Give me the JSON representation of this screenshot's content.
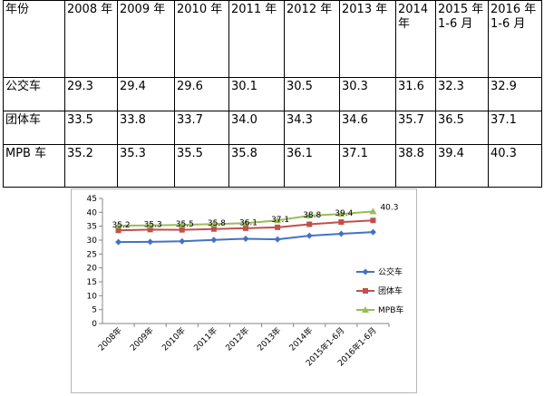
{
  "table": {
    "header": [
      "年份",
      "2008 年",
      "2009 年",
      "2010 年",
      "2011 年",
      "2012 年",
      "2013 年",
      "2014 年",
      "2015 年 1-6 月",
      "2016 年 1-6 月"
    ],
    "rows": [
      [
        "公交车",
        "29.3",
        "29.4",
        "29.6",
        "30.1",
        "30.5",
        "30.3",
        "31.6",
        "32.3",
        "32.9"
      ],
      [
        "团体车",
        "33.5",
        "33.8",
        "33.7",
        "34.0",
        "34.3",
        "34.6",
        "35.7",
        "36.5",
        "37.1"
      ],
      [
        "MPB 车",
        "35.2",
        "35.3",
        "35.5",
        "35.8",
        "36.1",
        "37.1",
        "38.8",
        "39.4",
        "40.3"
      ]
    ]
  },
  "chart_data": {
    "type": "line",
    "categories": [
      "2008年",
      "2009年",
      "2010年",
      "2011年",
      "2012年",
      "2013年",
      "2014年",
      "2015年1-6月",
      "2016年1-6月"
    ],
    "ylim": [
      0,
      45
    ],
    "yticks": [
      0,
      5,
      10,
      15,
      20,
      25,
      30,
      35,
      40,
      45
    ],
    "grid": false,
    "legend": "right",
    "series": [
      {
        "name": "公交车",
        "color": "#4472c4",
        "marker": "diamond",
        "values": [
          29.3,
          29.4,
          29.6,
          30.1,
          30.5,
          30.3,
          31.6,
          32.3,
          32.9
        ],
        "show_labels": false
      },
      {
        "name": "团体车",
        "color": "#c0504d",
        "marker": "square",
        "values": [
          33.5,
          33.8,
          33.7,
          34.0,
          34.3,
          34.6,
          35.7,
          36.5,
          37.1
        ],
        "show_labels": false
      },
      {
        "name": "MPB车",
        "color": "#9bbb59",
        "marker": "triangle",
        "values": [
          35.2,
          35.3,
          35.5,
          35.8,
          36.1,
          37.1,
          38.8,
          39.4,
          40.3
        ],
        "show_labels": true,
        "labels": [
          "35.2",
          "35.3",
          "35.5",
          "35.8",
          "36.1",
          "37.1",
          "38.8",
          "39.4",
          "40.3"
        ]
      }
    ]
  }
}
